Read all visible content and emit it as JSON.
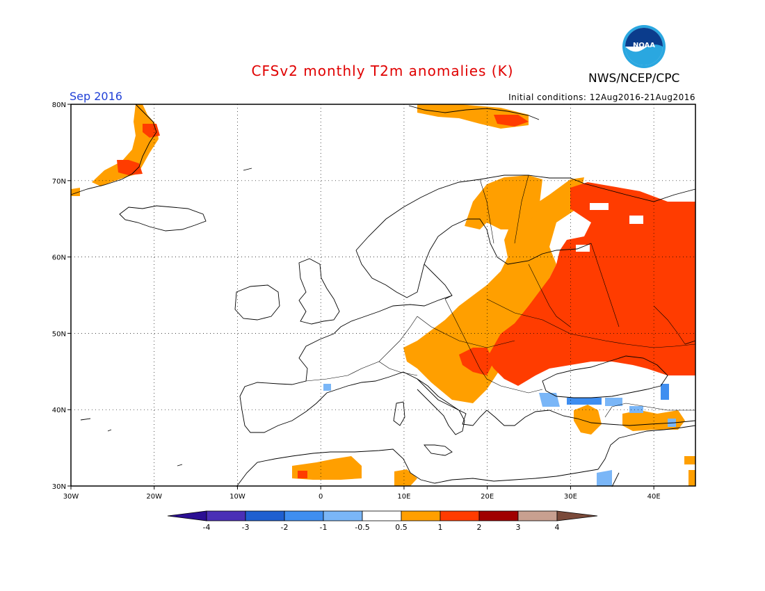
{
  "header": {
    "title": "CFSv2 monthly T2m anomalies (K)",
    "title_color": "#e00000",
    "org": "NWS/NCEP/CPC",
    "month": "Sep 2016",
    "month_color": "#1f3fd6",
    "initial_conditions": "Initial conditions: 12Aug2016-21Aug2016",
    "logo_text": "NOAA"
  },
  "map": {
    "lon_range": [
      -30,
      45
    ],
    "lat_range": [
      30,
      80
    ],
    "lat_labels": [
      "30N",
      "40N",
      "50N",
      "60N",
      "70N",
      "80N"
    ],
    "lon_labels": [
      "30W",
      "20W",
      "10W",
      "0",
      "10E",
      "20E",
      "30E",
      "40E"
    ],
    "grid": true
  },
  "colorbar": {
    "labels": [
      "-4",
      "-3",
      "-2",
      "-1",
      "-0.5",
      "0.5",
      "1",
      "2",
      "3",
      "4"
    ],
    "colors": [
      "#4a2fb6",
      "#1f5fd0",
      "#3f8ef0",
      "#7ab6f7",
      "#ffffff",
      "#ff9f00",
      "#ff3c00",
      "#a00000",
      "#c8a090",
      "#7a4a3a"
    ],
    "low_end_color": "#2b0f93"
  }
}
